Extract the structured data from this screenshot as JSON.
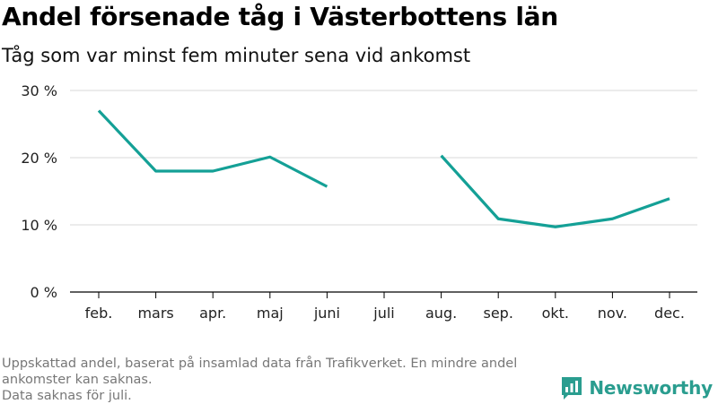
{
  "title": "Andel försenade tåg i Västerbottens län",
  "subtitle": "Tåg som var minst fem minuter sena vid ankomst",
  "footnote": {
    "line1": "Uppskattad andel, baserat på insamlad data från Trafikverket. En mindre andel ankomster kan saknas.",
    "line2": "Data saknas för juli."
  },
  "brand": {
    "name": "Newsworthy",
    "color": "#2a9d8f"
  },
  "chart_data": {
    "type": "line",
    "categories": [
      "feb.",
      "mars",
      "apr.",
      "maj",
      "juni",
      "juli",
      "aug.",
      "sep.",
      "okt.",
      "nov.",
      "dec."
    ],
    "series": [
      {
        "values": [
          27,
          18,
          18,
          20.1,
          15.7,
          null,
          20.3,
          10.9,
          9.7,
          10.9,
          13.9
        ]
      }
    ],
    "y_ticks": [
      0,
      10,
      20,
      30
    ],
    "y_tick_labels": [
      "0 %",
      "10 %",
      "20 %",
      "30 %"
    ],
    "ylim": [
      0,
      30
    ],
    "grid": true,
    "line_color": "#14a096",
    "xlabel": "",
    "ylabel": ""
  }
}
